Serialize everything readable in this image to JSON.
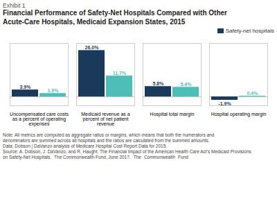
{
  "chart_data": {
    "type": "bar",
    "subtitle": "Exhibit 1",
    "title": "Financial Performance of Safety-Net Hospitals Compared with Other\nAcute-Care Hospitals, Medicaid Expansion States, 2015",
    "categories": [
      "Uncompensated care costs\nas a percent of operating\nexpenses",
      "Medicaid revenue as a\npercent of net patient\nrevenue",
      "Hospital total margin",
      "Hospital operating margin"
    ],
    "series": [
      {
        "name": "Safety-net hospitals",
        "color": "#1a3a5c",
        "values": [
          3.9,
          26.0,
          5.8,
          -1.9
        ],
        "value_labels": [
          "3.9%",
          "26.0%",
          "5.8%",
          "-1.9%"
        ]
      },
      {
        "color": "#4dbfb8",
        "values": [
          1.9,
          11.7,
          5.4,
          0.4
        ],
        "value_labels": [
          "1.9%",
          "11.7%",
          "5.4%",
          "0.4%"
        ]
      }
    ],
    "ylim": [
      -5,
      30
    ],
    "yticks": [],
    "tick_labels": "x",
    "grid": false,
    "legend": "upper right",
    "data_labels": true,
    "annotations": [
      "Note: All metrics are computed as aggregate ratios or margins, which means that both the numerators and",
      "denominators are summed across all hospitals and the ratios are calculated from the summed amounts.",
      "Data: Dobson | DaVanzo analysis of Medicare Hospital Cost Report Data for 2015.",
      "Source: A. Dobson, J. DaVanzo, and R. Haught, The Financial Impact of the American Health Care Act’s Medicaid Provisions",
      "on Safety-Net Hospitals.",
      "The Commonwealth Fund, June 2017.",
      "The",
      "Commonwealth",
      "Fund"
    ]
  }
}
